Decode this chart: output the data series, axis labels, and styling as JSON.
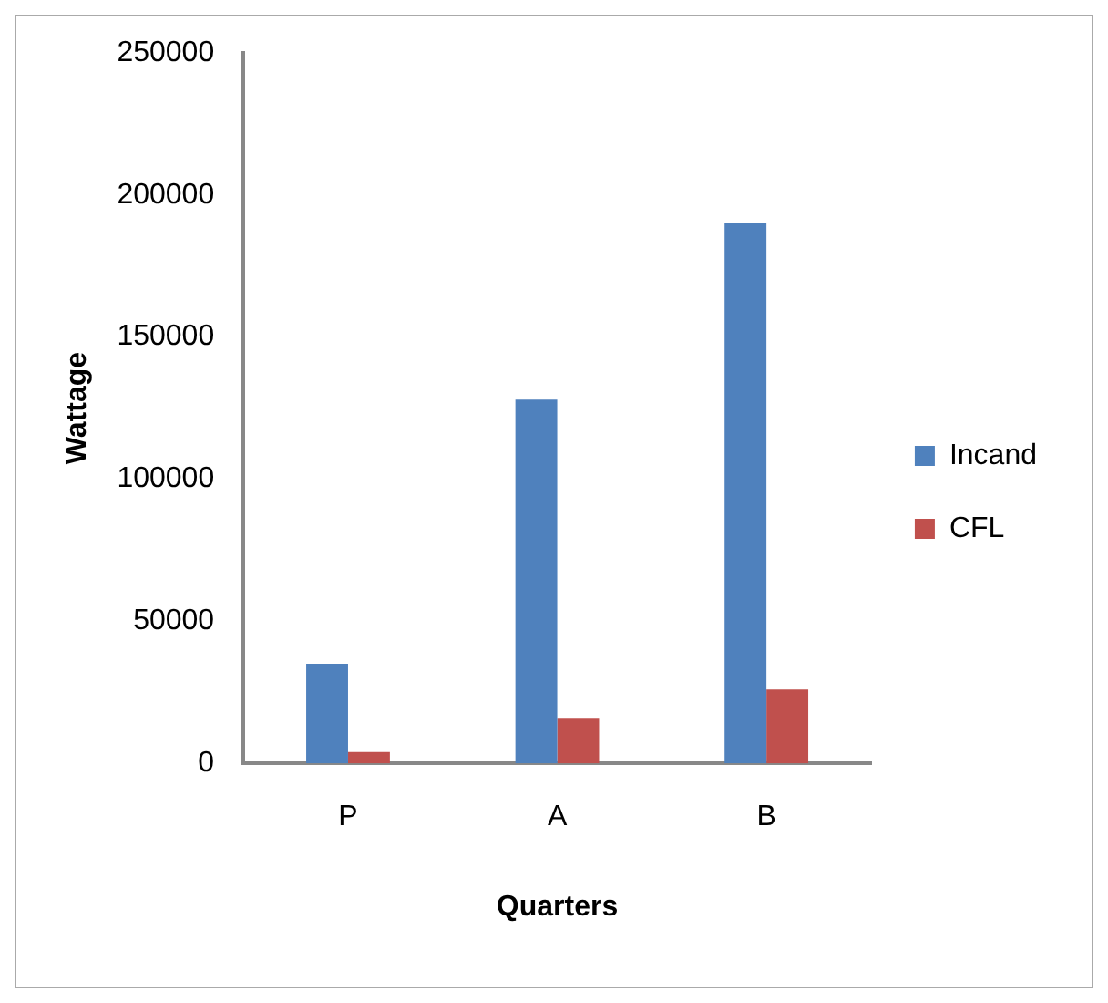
{
  "chart_data": {
    "type": "bar",
    "xlabel": "Quarters",
    "ylabel": "Wattage",
    "categories": [
      "P",
      "A",
      "B"
    ],
    "series": [
      {
        "name": "Incand",
        "color": "#4f81bd",
        "values": [
          35000,
          128000,
          190000
        ]
      },
      {
        "name": "CFL",
        "color": "#c0504d",
        "values": [
          4000,
          16000,
          26000
        ]
      }
    ],
    "ylim": [
      0,
      250000
    ],
    "yticks": [
      0,
      50000,
      100000,
      150000,
      200000,
      250000
    ],
    "grid": false,
    "legend": "right"
  }
}
